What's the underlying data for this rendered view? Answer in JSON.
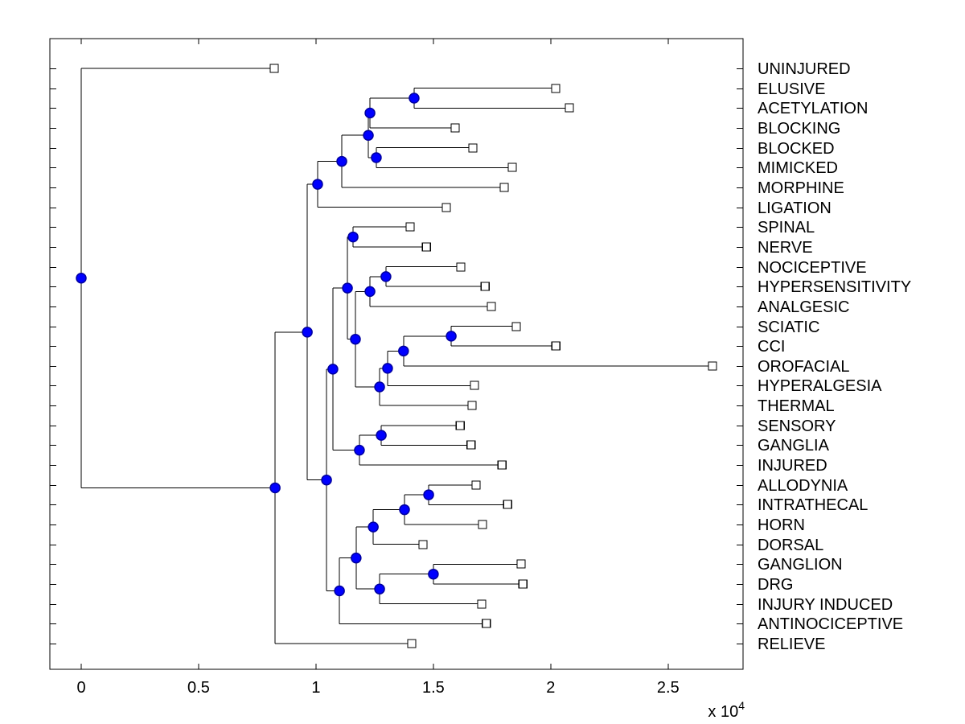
{
  "figure": {
    "background": "#ffffff",
    "description": "Horizontal dendrogram (phylogenetic-style tree) of pain-research terms"
  },
  "style": {
    "branch_color": "#000000",
    "node_dot_fill": "#0000ff",
    "node_dot_edge": "#0000a0",
    "leaf_marker_fill": "#ffffff",
    "leaf_marker_edge": "#000000",
    "axis_color": "#000000"
  },
  "chart_data": {
    "type": "dendrogram",
    "orientation": "root-left-leaves-right",
    "title": "",
    "xlabel": "",
    "ylabel": "",
    "grid": false,
    "x_axis": {
      "tick_values": [
        0,
        0.5,
        1,
        1.5,
        2,
        2.5
      ],
      "tick_labels": [
        "0",
        "0.5",
        "1",
        "1.5",
        "2",
        "2.5"
      ],
      "unit_scale": 10000,
      "multiplier_prefix": "x 10",
      "multiplier_exponent": "4",
      "range_units": [
        -1350,
        28200
      ]
    },
    "leaf_labels": [
      "UNINJURED",
      "ELUSIVE",
      "ACETYLATION",
      "BLOCKING",
      "BLOCKED",
      "MIMICKED",
      "MORPHINE",
      "LIGATION",
      "SPINAL",
      "NERVE",
      "NOCICEPTIVE",
      "HYPERSENSITIVITY",
      "ANALGESIC",
      "SCIATIC",
      "CCI",
      "OROFACIAL",
      "HYPERALGESIA",
      "THERMAL",
      "SENSORY",
      "GANGLIA",
      "INJURED",
      "ALLODYNIA",
      "INTRATHECAL",
      "HORN",
      "DORSAL",
      "GANGLION",
      "DRG",
      "INJURY INDUCED",
      "ANTINOCICEPTIVE",
      "RELIEVE"
    ],
    "tree": {
      "dist": 0,
      "children": [
        {
          "label": "UNINJURED",
          "dist": 8220
        },
        {
          "dist": 8260,
          "children": [
            {
              "dist": 9630,
              "children": [
                {
                  "dist": 10070,
                  "children": [
                    {
                      "dist": 11100,
                      "children": [
                        {
                          "dist": 12230,
                          "children": [
                            {
                              "dist": 12300,
                              "children": [
                                {
                                  "dist": 14180,
                                  "children": [
                                    {
                                      "label": "ELUSIVE",
                                      "dist": 20210
                                    },
                                    {
                                      "label": "ACETYLATION",
                                      "dist": 20790
                                    }
                                  ]
                                },
                                {
                                  "label": "BLOCKING",
                                  "dist": 15930
                                }
                              ]
                            },
                            {
                              "dist": 12570,
                              "children": [
                                {
                                  "label": "BLOCKED",
                                  "dist": 16680
                                },
                                {
                                  "label": "MIMICKED",
                                  "dist": 18360
                                }
                              ]
                            }
                          ]
                        },
                        {
                          "label": "MORPHINE",
                          "dist": 18020
                        }
                      ]
                    },
                    {
                      "label": "LIGATION",
                      "dist": 15550
                    }
                  ]
                },
                {
                  "dist": 10450,
                  "children": [
                    {
                      "dist": 10720,
                      "children": [
                        {
                          "dist": 11340,
                          "children": [
                            {
                              "dist": 11580,
                              "children": [
                                {
                                  "label": "SPINAL",
                                  "dist": 14010
                                },
                                {
                                  "label": "NERVE",
                                  "dist": 14700
                                }
                              ]
                            },
                            {
                              "dist": 11680,
                              "children": [
                                {
                                  "dist": 12300,
                                  "children": [
                                    {
                                      "dist": 12980,
                                      "children": [
                                        {
                                          "label": "NOCICEPTIVE",
                                          "dist": 16170
                                        },
                                        {
                                          "label": "HYPERSENSITIVITY",
                                          "dist": 17200
                                        }
                                      ]
                                    },
                                    {
                                      "label": "ANALGESIC",
                                      "dist": 17470
                                    }
                                  ]
                                },
                                {
                                  "dist": 12710,
                                  "children": [
                                    {
                                      "dist": 13050,
                                      "children": [
                                        {
                                          "dist": 13730,
                                          "children": [
                                            {
                                              "dist": 15760,
                                              "children": [
                                                {
                                                  "label": "SCIATIC",
                                                  "dist": 18530
                                                },
                                                {
                                                  "label": "CCI",
                                                  "dist": 20220
                                                }
                                              ]
                                            },
                                            {
                                              "label": "OROFACIAL",
                                              "dist": 26890
                                            }
                                          ]
                                        },
                                        {
                                          "label": "HYPERALGESIA",
                                          "dist": 16750
                                        }
                                      ]
                                    },
                                    {
                                      "label": "THERMAL",
                                      "dist": 16650
                                    }
                                  ]
                                }
                              ]
                            }
                          ]
                        },
                        {
                          "dist": 11850,
                          "children": [
                            {
                              "dist": 12780,
                              "children": [
                                {
                                  "label": "SENSORY",
                                  "dist": 16140
                                },
                                {
                                  "label": "GANGLIA",
                                  "dist": 16610
                                }
                              ]
                            },
                            {
                              "label": "INJURED",
                              "dist": 17920
                            }
                          ]
                        }
                      ]
                    },
                    {
                      "dist": 11000,
                      "children": [
                        {
                          "dist": 11710,
                          "children": [
                            {
                              "dist": 12440,
                              "children": [
                                {
                                  "dist": 13770,
                                  "children": [
                                    {
                                      "dist": 14800,
                                      "children": [
                                        {
                                          "label": "ALLODYNIA",
                                          "dist": 16820
                                        },
                                        {
                                          "label": "INTRATHECAL",
                                          "dist": 18160
                                        }
                                      ]
                                    },
                                    {
                                      "label": "HORN",
                                      "dist": 17090
                                    }
                                  ]
                                },
                                {
                                  "label": "DORSAL",
                                  "dist": 14560
                                }
                              ]
                            },
                            {
                              "dist": 12710,
                              "children": [
                                {
                                  "dist": 15000,
                                  "children": [
                                    {
                                      "label": "GANGLION",
                                      "dist": 18740
                                    },
                                    {
                                      "label": "DRG",
                                      "dist": 18810
                                    }
                                  ]
                                },
                                {
                                  "label": "INJURY INDUCED",
                                  "dist": 17060
                                }
                              ]
                            }
                          ]
                        },
                        {
                          "label": "ANTINOCICEPTIVE",
                          "dist": 17260
                        }
                      ]
                    }
                  ]
                }
              ]
            },
            {
              "label": "RELIEVE",
              "dist": 14080
            }
          ]
        }
      ]
    }
  }
}
